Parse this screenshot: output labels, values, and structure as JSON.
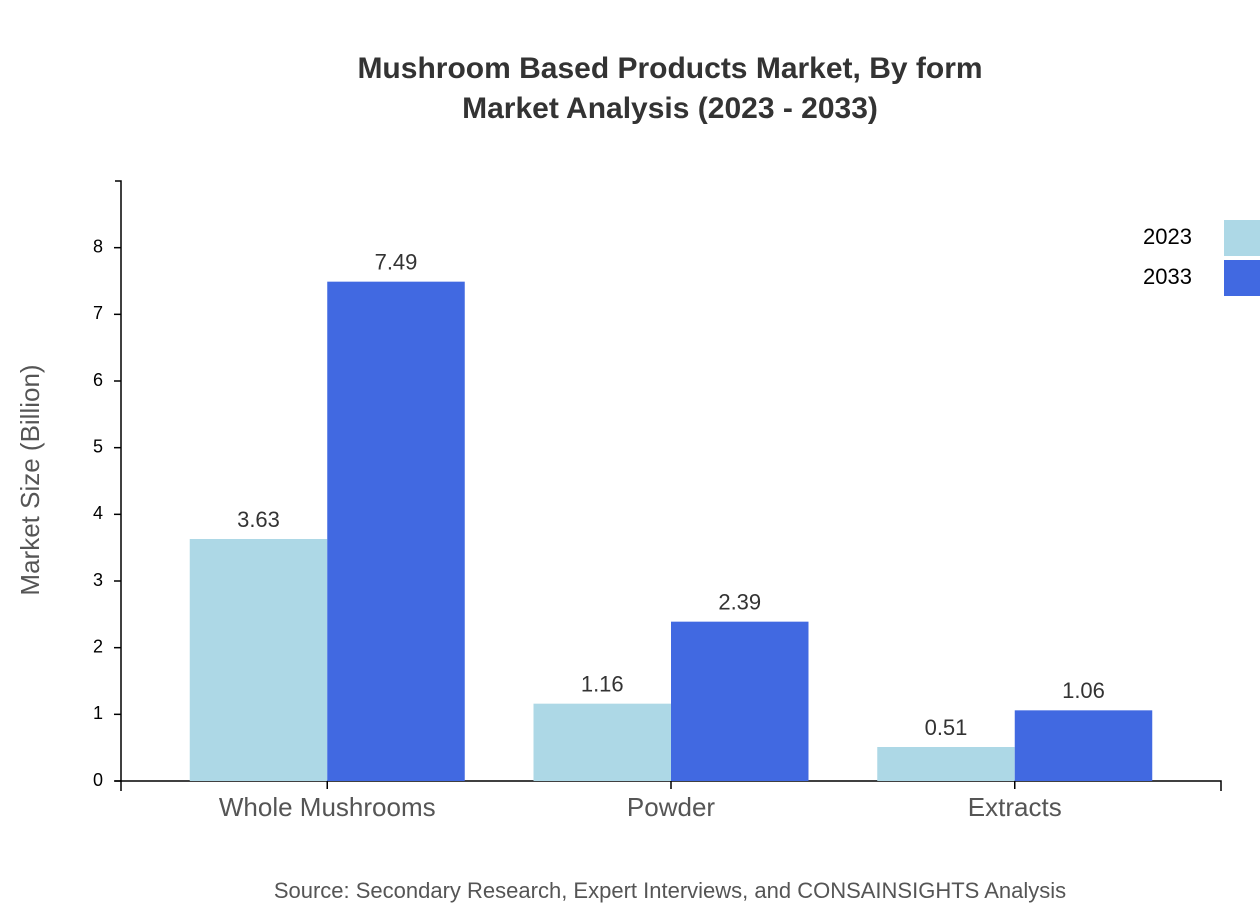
{
  "chart_data": {
    "type": "bar",
    "title": "Mushroom Based Products Market, By form",
    "subtitle": "Market Analysis (2023 - 2033)",
    "y_label": "Market Size (Billion)",
    "source": "Source: Secondary Research, Expert Interviews, and CONSAINSIGHTS Analysis",
    "categories": [
      "Whole Mushrooms",
      "Powder",
      "Extracts"
    ],
    "series": [
      {
        "name": "2023",
        "color": "#add8e6",
        "values": [
          3.63,
          1.16,
          0.51
        ]
      },
      {
        "name": "2033",
        "color": "#4169e1",
        "values": [
          7.49,
          2.39,
          1.06
        ]
      }
    ],
    "ylim": [
      0,
      9
    ],
    "yticks": [
      0,
      1,
      2,
      3,
      4,
      5,
      6,
      7,
      8
    ],
    "grid": false,
    "legend": "top-right"
  }
}
